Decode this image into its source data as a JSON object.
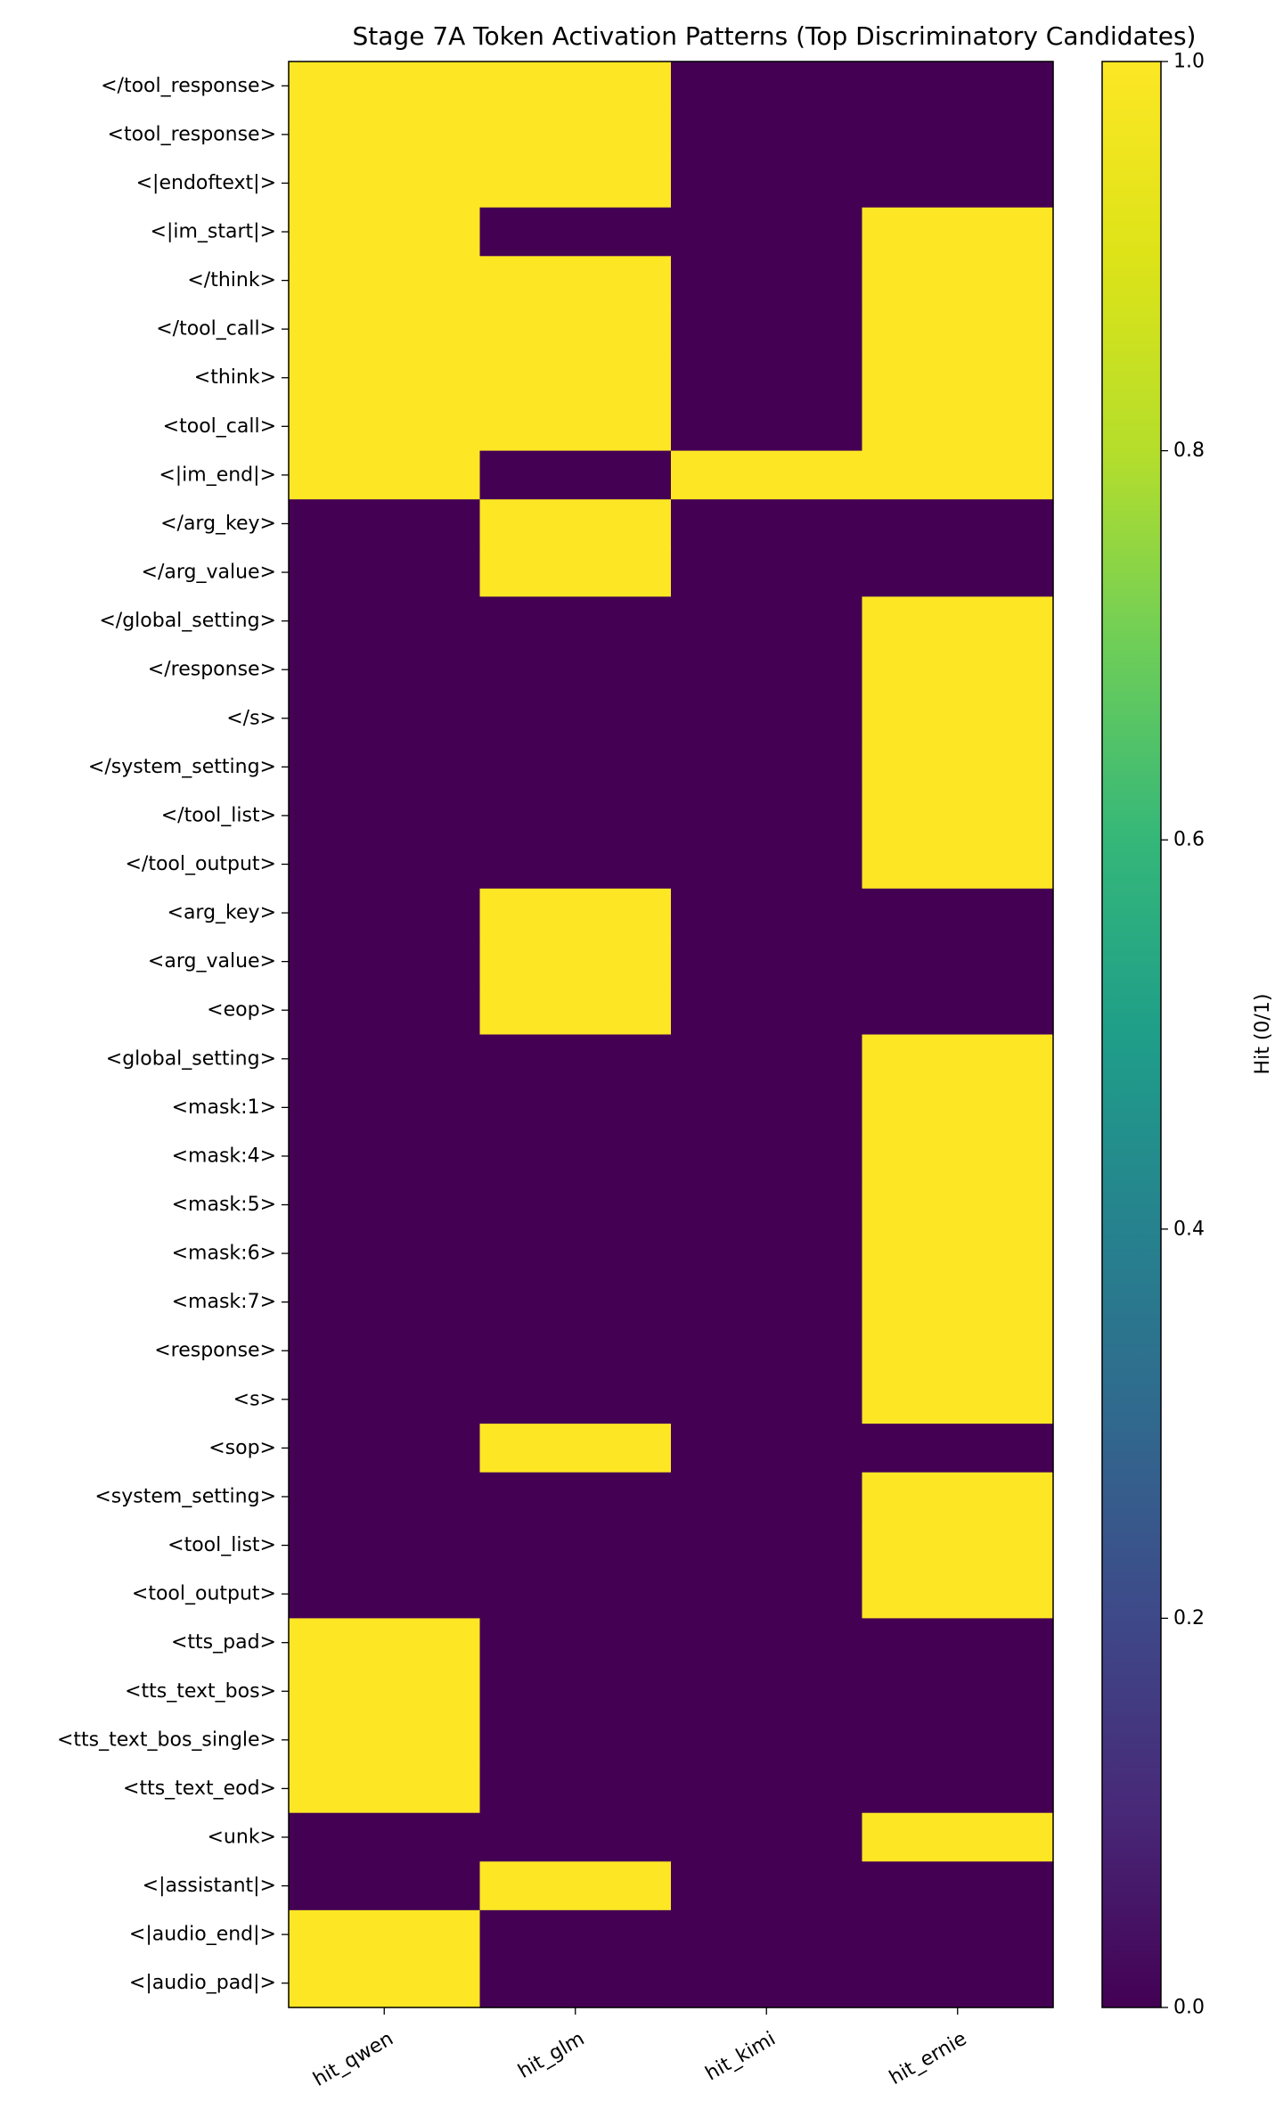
{
  "chart_data": {
    "type": "heatmap",
    "title": "Stage 7A Token Activation Patterns (Top Discriminatory Candidates)",
    "x_categories": [
      "hit_qwen",
      "hit_glm",
      "hit_kimi",
      "hit_ernie"
    ],
    "y_categories": [
      "</tool_response>",
      "<tool_response>",
      "<|endoftext|>",
      "<|im_start|>",
      "</think>",
      "</tool_call>",
      "<think>",
      "<tool_call>",
      "<|im_end|>",
      "</arg_key>",
      "</arg_value>",
      "</global_setting>",
      "</response>",
      "</s>",
      "</system_setting>",
      "</tool_list>",
      "</tool_output>",
      "<arg_key>",
      "<arg_value>",
      "<eop>",
      "<global_setting>",
      "<mask:1>",
      "<mask:4>",
      "<mask:5>",
      "<mask:6>",
      "<mask:7>",
      "<response>",
      "<s>",
      "<sop>",
      "<system_setting>",
      "<tool_list>",
      "<tool_output>",
      "<tts_pad>",
      "<tts_text_bos>",
      "<tts_text_bos_single>",
      "<tts_text_eod>",
      "<unk>",
      "<|assistant|>",
      "<|audio_end|>",
      "<|audio_pad|>"
    ],
    "values": [
      [
        1,
        1,
        0,
        0
      ],
      [
        1,
        1,
        0,
        0
      ],
      [
        1,
        1,
        0,
        0
      ],
      [
        1,
        0,
        0,
        1
      ],
      [
        1,
        1,
        0,
        1
      ],
      [
        1,
        1,
        0,
        1
      ],
      [
        1,
        1,
        0,
        1
      ],
      [
        1,
        1,
        0,
        1
      ],
      [
        1,
        0,
        1,
        1
      ],
      [
        0,
        1,
        0,
        0
      ],
      [
        0,
        1,
        0,
        0
      ],
      [
        0,
        0,
        0,
        1
      ],
      [
        0,
        0,
        0,
        1
      ],
      [
        0,
        0,
        0,
        1
      ],
      [
        0,
        0,
        0,
        1
      ],
      [
        0,
        0,
        0,
        1
      ],
      [
        0,
        0,
        0,
        1
      ],
      [
        0,
        1,
        0,
        0
      ],
      [
        0,
        1,
        0,
        0
      ],
      [
        0,
        1,
        0,
        0
      ],
      [
        0,
        0,
        0,
        1
      ],
      [
        0,
        0,
        0,
        1
      ],
      [
        0,
        0,
        0,
        1
      ],
      [
        0,
        0,
        0,
        1
      ],
      [
        0,
        0,
        0,
        1
      ],
      [
        0,
        0,
        0,
        1
      ],
      [
        0,
        0,
        0,
        1
      ],
      [
        0,
        0,
        0,
        1
      ],
      [
        0,
        1,
        0,
        0
      ],
      [
        0,
        0,
        0,
        1
      ],
      [
        0,
        0,
        0,
        1
      ],
      [
        0,
        0,
        0,
        1
      ],
      [
        1,
        0,
        0,
        0
      ],
      [
        1,
        0,
        0,
        0
      ],
      [
        1,
        0,
        0,
        0
      ],
      [
        1,
        0,
        0,
        0
      ],
      [
        0,
        0,
        0,
        1
      ],
      [
        0,
        1,
        0,
        0
      ],
      [
        1,
        0,
        0,
        0
      ],
      [
        1,
        0,
        0,
        0
      ]
    ],
    "colorbar": {
      "label": "Hit (0/1)",
      "range": [
        0,
        1
      ],
      "ticks": [
        "0.0",
        "0.2",
        "0.4",
        "0.6",
        "0.8",
        "1.0"
      ],
      "colormap": "viridis"
    },
    "colors": {
      "low": "#440154",
      "high": "#fde725"
    }
  }
}
